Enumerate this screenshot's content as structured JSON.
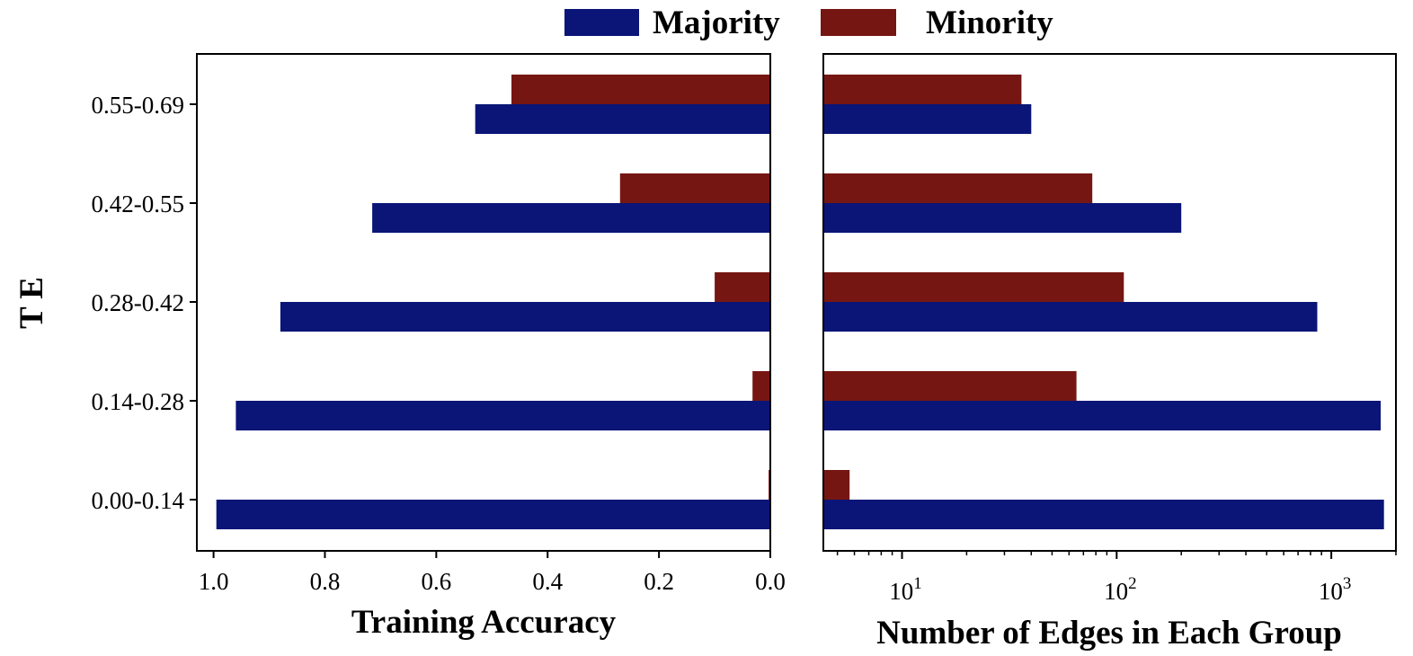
{
  "chart_data": {
    "type": "bar",
    "orientation": "horizontal",
    "categories": [
      "0.00-0.14",
      "0.14-0.28",
      "0.28-0.42",
      "0.42-0.55",
      "0.55-0.69"
    ],
    "ylabel": "T E",
    "legend": {
      "position": "top-center",
      "entries": [
        {
          "name": "Majority",
          "color": "#0a1577"
        },
        {
          "name": "Minority",
          "color": "#761612"
        }
      ]
    },
    "panels": [
      {
        "id": "training-accuracy",
        "xlabel": "Training Accuracy",
        "xscale": "linear",
        "xlim": [
          1.03,
          0.0
        ],
        "xticks": [
          "1.0",
          "0.8",
          "0.6",
          "0.4",
          "0.2",
          "0.0"
        ],
        "xtick_values": [
          1.0,
          0.8,
          0.6,
          0.4,
          0.2,
          0.0
        ],
        "series": [
          {
            "name": "Majority",
            "color": "#0a1577",
            "values": [
              0.995,
              0.96,
              0.88,
              0.715,
              0.53
            ]
          },
          {
            "name": "Minority",
            "color": "#761612",
            "values": [
              0.003,
              0.032,
              0.1,
              0.27,
              0.465
            ]
          }
        ]
      },
      {
        "id": "edge-counts",
        "xlabel": "Number of Edges in Each Group",
        "xscale": "log",
        "xlim": [
          4.3,
          2000
        ],
        "xticks": [
          {
            "base": "10",
            "exp": "1",
            "value": 10
          },
          {
            "base": "10",
            "exp": "2",
            "value": 100
          },
          {
            "base": "10",
            "exp": "3",
            "value": 1000
          }
        ],
        "series": [
          {
            "name": "Majority",
            "color": "#0a1577",
            "values": [
              1760,
              1700,
              860,
              200,
              40
            ]
          },
          {
            "name": "Minority",
            "color": "#761612",
            "values": [
              5.7,
              65,
              108,
              77,
              36
            ]
          }
        ]
      }
    ]
  }
}
